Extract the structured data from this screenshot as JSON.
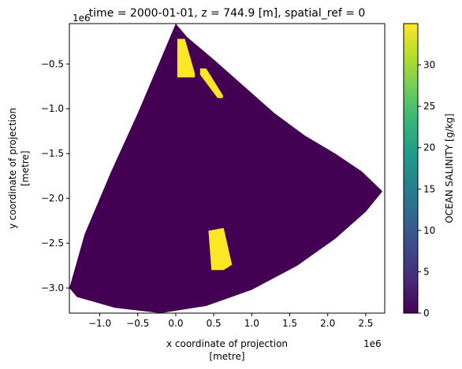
{
  "chart_data": {
    "type": "heatmap",
    "title": "time = 2000-01-01, z = 744.9 [m], spatial_ref = 0",
    "xlabel": "x coordinate of projection",
    "xlabel_unit": "[metre]",
    "ylabel": "y coordinate of projection",
    "ylabel_unit": "[metre]",
    "x_offset_text": "1e6",
    "y_offset_text": "1e6",
    "xlim": [
      -1.4,
      2.75
    ],
    "ylim": [
      -3.28,
      -0.05
    ],
    "x_ticks": [
      -1.0,
      -0.5,
      0.0,
      0.5,
      1.0,
      1.5,
      2.0,
      2.5
    ],
    "x_tick_labels": [
      "−1.0",
      "−0.5",
      "0.0",
      "0.5",
      "1.0",
      "1.5",
      "2.0",
      "2.5"
    ],
    "y_ticks": [
      -0.5,
      -1.0,
      -1.5,
      -2.0,
      -2.5,
      -3.0
    ],
    "y_tick_labels": [
      "−0.5",
      "−1.0",
      "−1.5",
      "−2.0",
      "−2.5",
      "−3.0"
    ],
    "background_value": 0,
    "domain_outline": [
      [
        0.0,
        -0.05
      ],
      [
        0.15,
        -0.2
      ],
      [
        0.5,
        -0.45
      ],
      [
        0.9,
        -0.75
      ],
      [
        1.3,
        -1.05
      ],
      [
        1.7,
        -1.3
      ],
      [
        2.1,
        -1.5
      ],
      [
        2.45,
        -1.7
      ],
      [
        2.72,
        -1.92
      ],
      [
        2.5,
        -2.15
      ],
      [
        2.1,
        -2.45
      ],
      [
        1.6,
        -2.75
      ],
      [
        1.0,
        -3.02
      ],
      [
        0.4,
        -3.2
      ],
      [
        -0.2,
        -3.28
      ],
      [
        -0.8,
        -3.22
      ],
      [
        -1.3,
        -3.1
      ],
      [
        -1.4,
        -3.0
      ],
      [
        -1.2,
        -2.4
      ],
      [
        -0.85,
        -1.7
      ],
      [
        -0.5,
        -1.05
      ],
      [
        -0.2,
        -0.45
      ]
    ],
    "high_regions": [
      {
        "value": 35,
        "polygon": [
          [
            0.02,
            -0.22
          ],
          [
            0.12,
            -0.22
          ],
          [
            0.25,
            -0.6
          ],
          [
            0.25,
            -0.65
          ],
          [
            0.02,
            -0.65
          ]
        ]
      },
      {
        "value": 35,
        "polygon": [
          [
            0.32,
            -0.55
          ],
          [
            0.4,
            -0.55
          ],
          [
            0.62,
            -0.85
          ],
          [
            0.62,
            -0.88
          ],
          [
            0.55,
            -0.88
          ],
          [
            0.32,
            -0.62
          ]
        ]
      },
      {
        "value": 35,
        "polygon": [
          [
            0.43,
            -2.36
          ],
          [
            0.63,
            -2.33
          ],
          [
            0.74,
            -2.74
          ],
          [
            0.63,
            -2.8
          ],
          [
            0.47,
            -2.8
          ]
        ]
      }
    ],
    "colorbar": {
      "label": "OCEAN SALINITY [g/kg]",
      "range": [
        0,
        35
      ],
      "ticks": [
        0,
        5,
        10,
        15,
        20,
        25,
        30
      ],
      "colormap": [
        "#440154",
        "#482878",
        "#3e4989",
        "#31688e",
        "#26828e",
        "#1f9e89",
        "#35b779",
        "#6ece58",
        "#b5de2b",
        "#fde725"
      ]
    }
  }
}
